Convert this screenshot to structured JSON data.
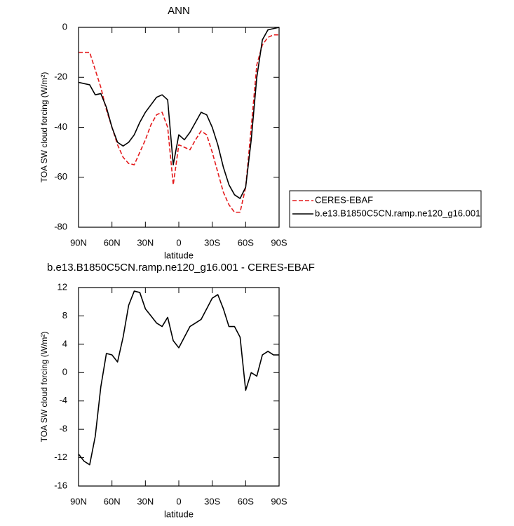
{
  "chart_data": [
    {
      "type": "line",
      "title": "ANN",
      "xlabel": "latitude",
      "ylabel": "TOA SW cloud forcing (W/m²)",
      "x": [
        90,
        85,
        80,
        75,
        70,
        65,
        60,
        55,
        50,
        45,
        40,
        35,
        30,
        25,
        20,
        15,
        10,
        5,
        0,
        -5,
        -10,
        -15,
        -20,
        -25,
        -30,
        -35,
        -40,
        -45,
        -50,
        -55,
        -60,
        -65,
        -70,
        -75,
        -80,
        -85,
        -90
      ],
      "series": [
        {
          "name": "CERES-EBAF",
          "color": "#e41a1c",
          "dashed": true,
          "values": [
            -10,
            -10,
            -10,
            -17,
            -24,
            -33,
            -40,
            -47,
            -52,
            -54.5,
            -55,
            -50,
            -45,
            -39,
            -35,
            -34,
            -40,
            -63,
            -47,
            -48,
            -49,
            -45,
            -41.5,
            -43,
            -50,
            -58,
            -66,
            -71,
            -74,
            -74,
            -64,
            -40,
            -15,
            -7,
            -4,
            -3,
            -3
          ]
        },
        {
          "name": "b.e13.B1850C5CN.ramp.ne120_g16.001",
          "color": "#000000",
          "dashed": false,
          "values": [
            -22,
            -22.5,
            -23,
            -27,
            -26.5,
            -32,
            -40,
            -46,
            -47.5,
            -46,
            -43,
            -38,
            -34,
            -31,
            -28,
            -27,
            -29,
            -55,
            -43,
            -45,
            -42,
            -38,
            -34,
            -35,
            -40,
            -47,
            -56,
            -63,
            -67,
            -68.5,
            -64,
            -45,
            -20,
            -5,
            -1,
            -0.5,
            0
          ]
        }
      ],
      "xlim": [
        90,
        -90
      ],
      "xticks": [
        {
          "value": 90,
          "label": "90N"
        },
        {
          "value": 60,
          "label": "60N"
        },
        {
          "value": 30,
          "label": "30N"
        },
        0,
        {
          "value": -30,
          "label": "30S"
        },
        {
          "value": -60,
          "label": "60S"
        },
        {
          "value": -90,
          "label": "90S"
        }
      ],
      "ylim": [
        -80,
        0
      ],
      "yticks": [
        0,
        -20,
        -40,
        -60,
        -80
      ],
      "grid": false,
      "legend": "right"
    },
    {
      "type": "line",
      "title": "b.e13.B1850C5CN.ramp.ne120_g16.001 - CERES-EBAF",
      "xlabel": "latitude",
      "ylabel": "TOA SW cloud forcing (W/m²)",
      "x": [
        90,
        85,
        80,
        75,
        70,
        65,
        60,
        55,
        50,
        45,
        40,
        35,
        30,
        25,
        20,
        15,
        10,
        5,
        0,
        -5,
        -10,
        -15,
        -20,
        -25,
        -30,
        -35,
        -40,
        -45,
        -50,
        -55,
        -60,
        -65,
        -70,
        -75,
        -80,
        -85,
        -90
      ],
      "values": [
        -11.5,
        -12.5,
        -13,
        -9,
        -2,
        2.7,
        2.5,
        1.5,
        5,
        9.5,
        11.5,
        11.3,
        9,
        8,
        7,
        6.5,
        7.8,
        4.5,
        3.5,
        5,
        6.5,
        7,
        7.5,
        9,
        10.5,
        11,
        9,
        6.5,
        6.5,
        5,
        -2.5,
        0,
        -0.5,
        2.5,
        3,
        2.5,
        2.5
      ],
      "color": "#000000",
      "xlim": [
        90,
        -90
      ],
      "xticks": [
        {
          "value": 90,
          "label": "90N"
        },
        {
          "value": 60,
          "label": "60N"
        },
        {
          "value": 30,
          "label": "30N"
        },
        0,
        {
          "value": -30,
          "label": "30S"
        },
        {
          "value": -60,
          "label": "60S"
        },
        {
          "value": -90,
          "label": "90S"
        }
      ],
      "ylim": [
        -16,
        12
      ],
      "yticks": [
        12,
        8,
        4,
        0,
        -4,
        -8,
        -12,
        -16
      ],
      "grid": false
    }
  ]
}
